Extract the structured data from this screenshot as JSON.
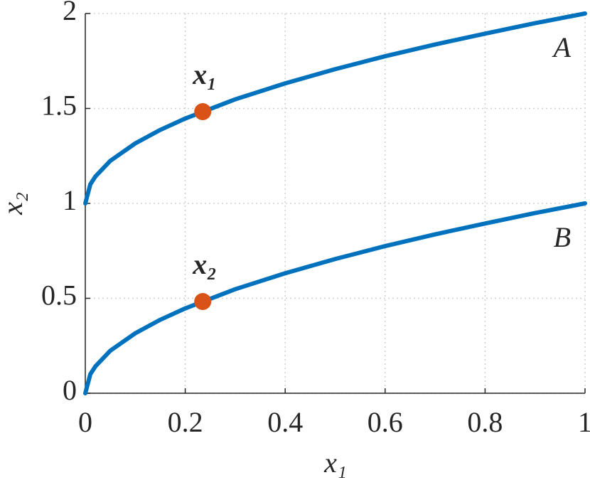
{
  "chart_data": {
    "type": "line",
    "x": [
      0,
      0.01,
      0.02,
      0.05,
      0.1,
      0.15,
      0.2,
      0.3,
      0.4,
      0.5,
      0.6,
      0.7,
      0.8,
      0.9,
      1
    ],
    "series": [
      {
        "name": "A",
        "color": "#0072bd",
        "values": [
          1,
          1.1,
          1.141,
          1.224,
          1.316,
          1.387,
          1.447,
          1.548,
          1.632,
          1.707,
          1.775,
          1.837,
          1.894,
          1.949,
          2
        ]
      },
      {
        "name": "B",
        "color": "#0072bd",
        "values": [
          0,
          0.1,
          0.141,
          0.224,
          0.316,
          0.387,
          0.447,
          0.548,
          0.632,
          0.707,
          0.775,
          0.837,
          0.894,
          0.949,
          1
        ]
      }
    ],
    "points": [
      {
        "label": "x₁",
        "x": 0.235,
        "y": 1.483
      },
      {
        "label": "x₂",
        "x": 0.235,
        "y": 0.483
      }
    ],
    "point_color": "#d95319",
    "xlabel": "x₁",
    "ylabel": "x₂",
    "xlim": [
      0,
      1
    ],
    "ylim": [
      0,
      2
    ],
    "xticks": [
      0,
      0.2,
      0.4,
      0.6,
      0.8,
      1
    ],
    "yticks": [
      0,
      0.5,
      1,
      1.5,
      2
    ],
    "grid": true
  }
}
